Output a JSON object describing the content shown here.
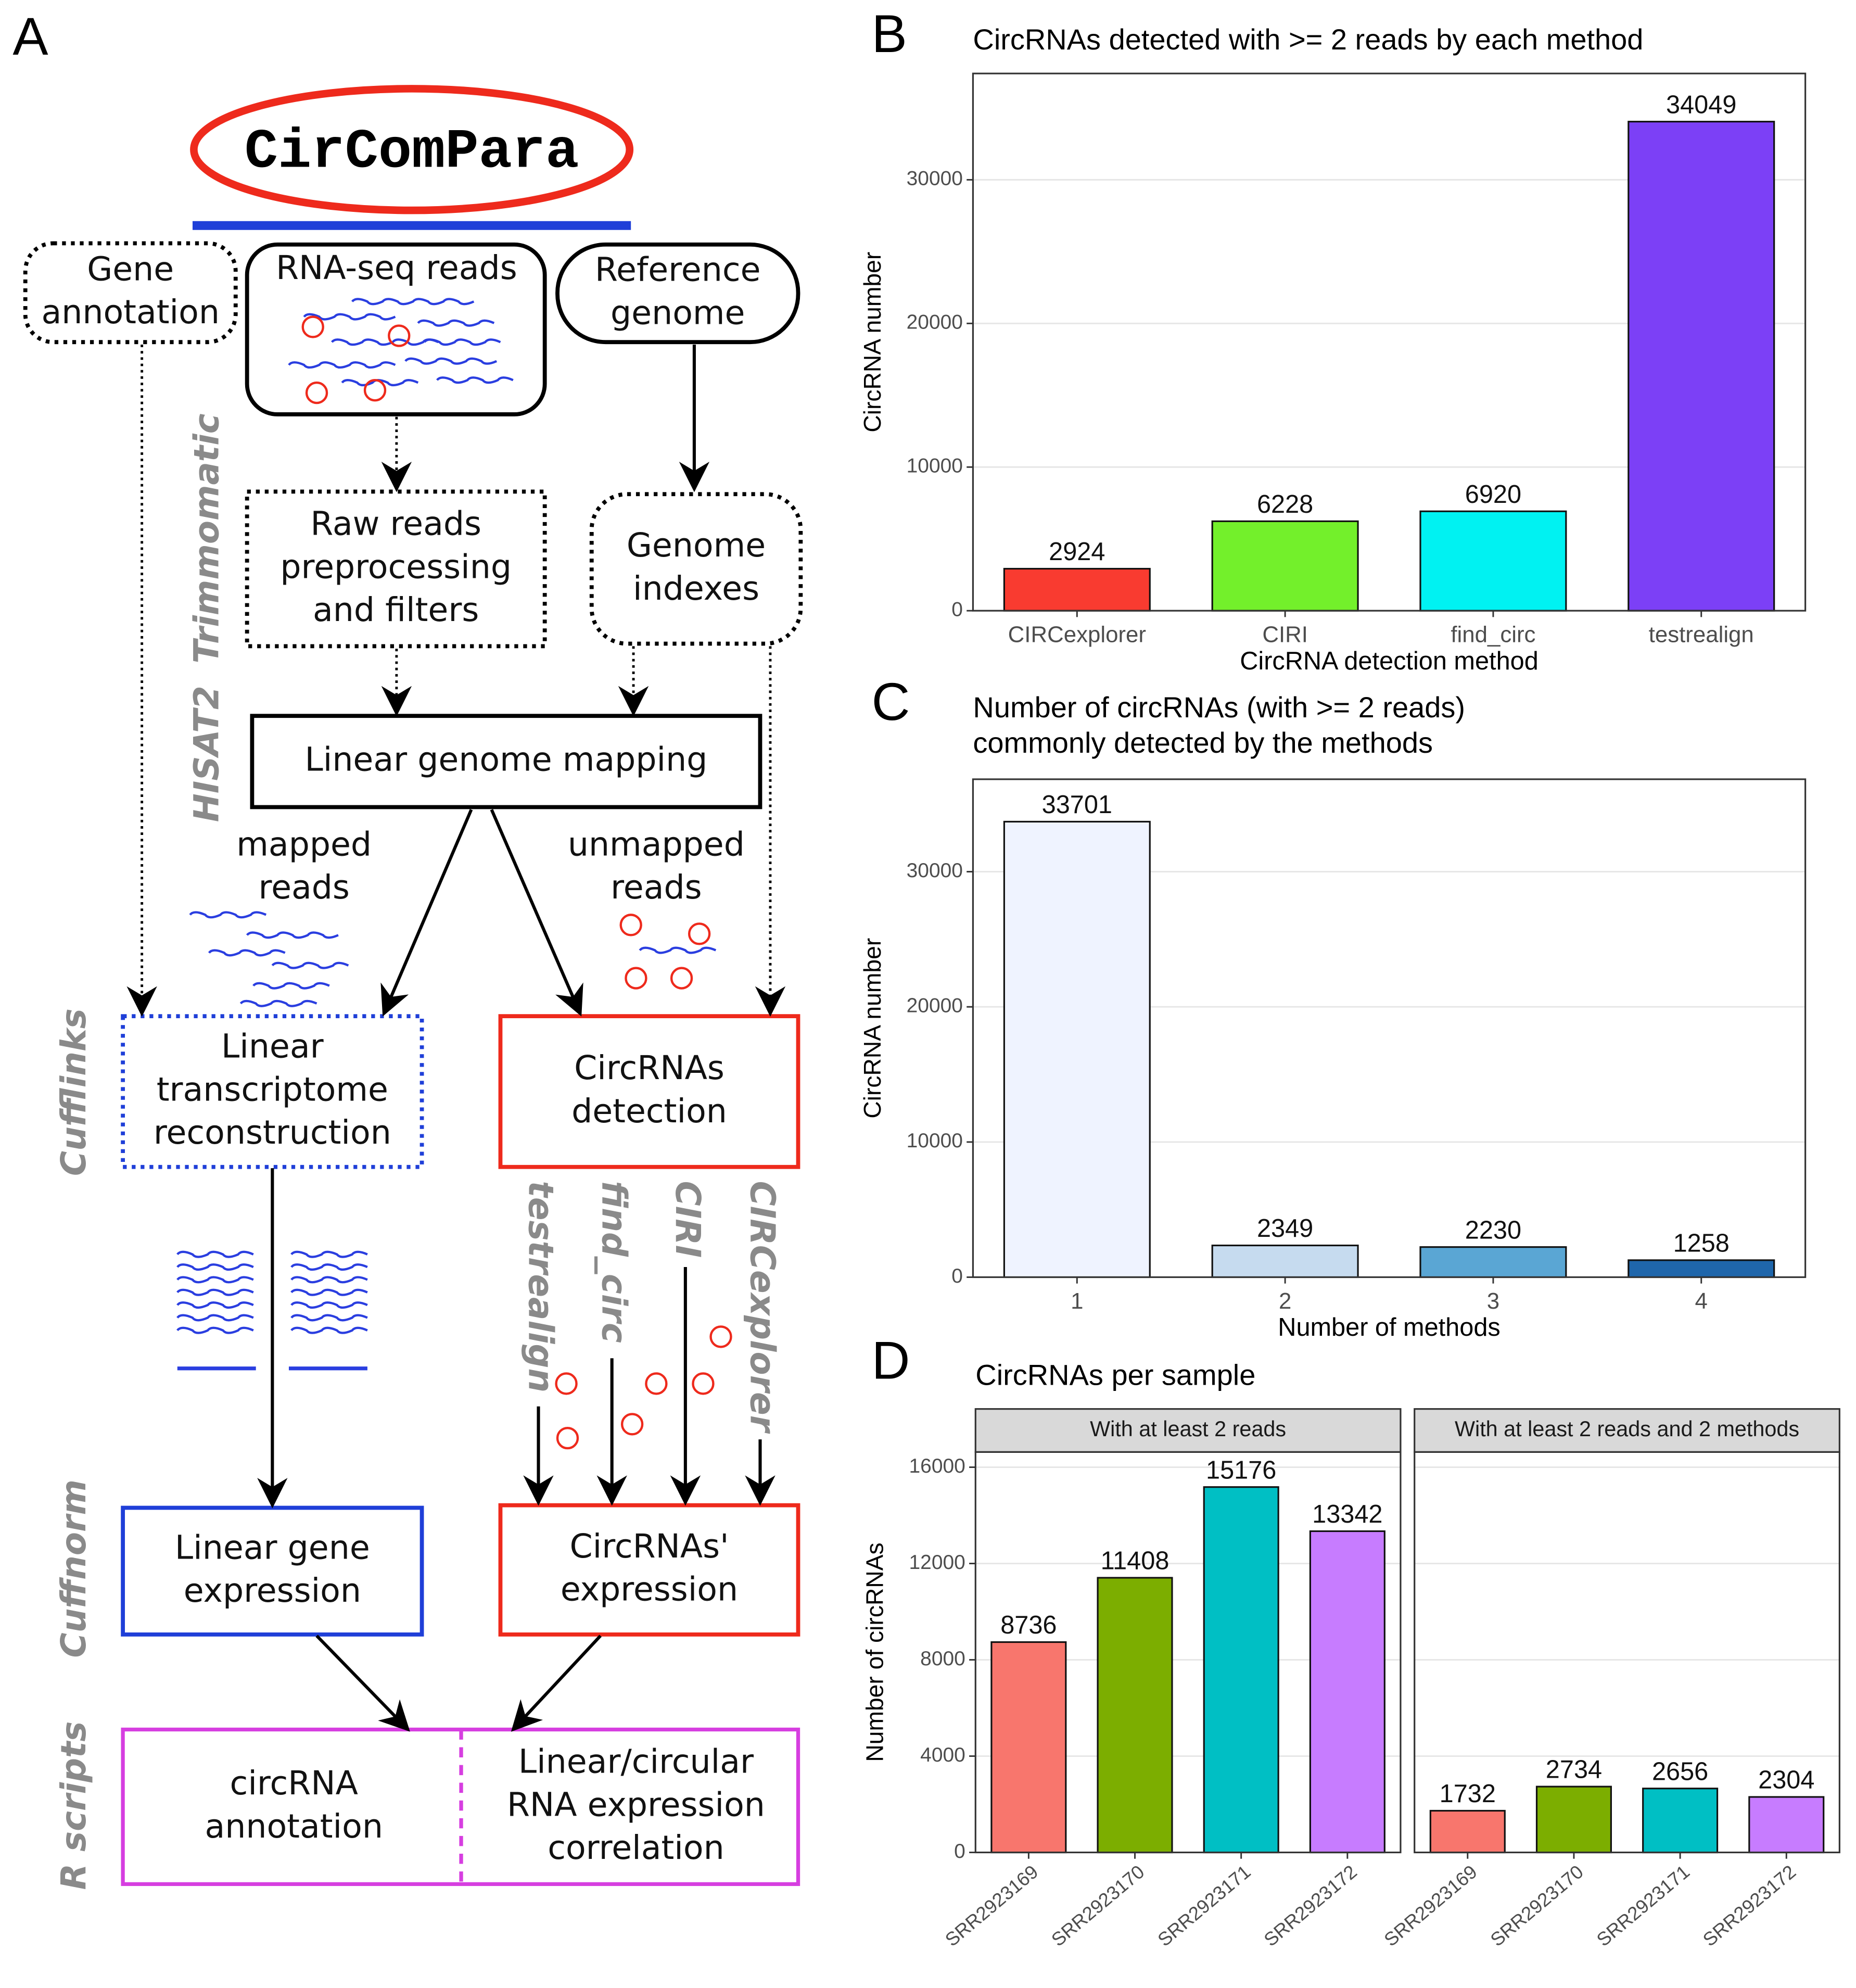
{
  "diagram": {
    "label": "A",
    "title": "CirComPara",
    "nodes": [
      {
        "lines": [
          "Gene",
          "annotation"
        ]
      },
      {
        "lines": [
          "RNA-seq reads"
        ]
      },
      {
        "lines": [
          "Reference",
          "genome"
        ]
      },
      {
        "lines": [
          "Raw reads",
          "preprocessing",
          "and filters"
        ]
      },
      {
        "lines": [
          "Genome",
          "indexes"
        ]
      },
      {
        "lines": [
          "Linear genome mapping"
        ]
      },
      {
        "lines": [
          "Linear",
          "transcriptome",
          "reconstruction"
        ]
      },
      {
        "lines": [
          "CircRNAs",
          "detection"
        ]
      },
      {
        "lines": [
          "Linear gene",
          "expression"
        ]
      },
      {
        "lines": [
          "CircRNAs'",
          "expression"
        ]
      },
      {
        "lines": [
          "circRNA",
          "annotation"
        ]
      },
      {
        "lines": [
          "Linear/circular",
          "RNA expression",
          "correlation"
        ]
      }
    ],
    "edge_labels": [
      [
        "mapped",
        "reads"
      ],
      [
        "unmapped",
        "reads"
      ]
    ],
    "tools": [
      "Trimmomatic",
      "HISAT2",
      "Cufflinks",
      "Cuffnorm",
      "R scripts"
    ],
    "methods": [
      "testrealign",
      "find_circ",
      "CIRI",
      "CIRCexplorer"
    ]
  },
  "chart_data": [
    {
      "type": "bar",
      "label": "B",
      "title": "CircRNAs detected with >= 2 reads by each method",
      "categories": [
        "CIRCexplorer",
        "CIRI",
        "find_circ",
        "testrealign"
      ],
      "values": [
        2924,
        6228,
        6920,
        34049
      ],
      "colors": [
        "#f93b30",
        "#73f02b",
        "#00f2f2",
        "#7c40f6"
      ],
      "xlabel": "CircRNA detection method",
      "ylabel": "CircRNA number",
      "ylim": [
        0,
        37400
      ],
      "yticks": [
        0,
        10000,
        20000,
        30000
      ],
      "grid": true
    },
    {
      "type": "bar",
      "label": "C",
      "title": [
        "Number of circRNAs (with >= 2 reads)",
        "commonly detected by the methods"
      ],
      "categories": [
        "1",
        "2",
        "3",
        "4"
      ],
      "values": [
        33701,
        2349,
        2230,
        1258
      ],
      "colors": [
        "#eff3ff",
        "#c6dbef",
        "#5aa6d4",
        "#1f66ab"
      ],
      "xlabel": "Number of methods",
      "ylabel": "CircRNA number",
      "ylim": [
        0,
        36840
      ],
      "yticks": [
        0,
        10000,
        20000,
        30000
      ],
      "grid": true
    },
    {
      "type": "bar",
      "label": "D",
      "title": "CircRNAs per sample",
      "categories": [
        "SRR2923169",
        "SRR2923170",
        "SRR2923171",
        "SRR2923172"
      ],
      "colors": [
        "#f8766d",
        "#7cae00",
        "#00bfc4",
        "#c77cff"
      ],
      "facets": [
        {
          "name": "With at least 2 reads",
          "values": [
            8736,
            11408,
            15176,
            13342
          ]
        },
        {
          "name": "With at least 2 reads and 2 methods",
          "values": [
            1732,
            2734,
            2656,
            2304
          ]
        }
      ],
      "ylabel": "Number of circRNAs",
      "ylim": [
        0,
        16630
      ],
      "yticks": [
        0,
        4000,
        8000,
        12000,
        16000
      ],
      "grid": true
    }
  ]
}
